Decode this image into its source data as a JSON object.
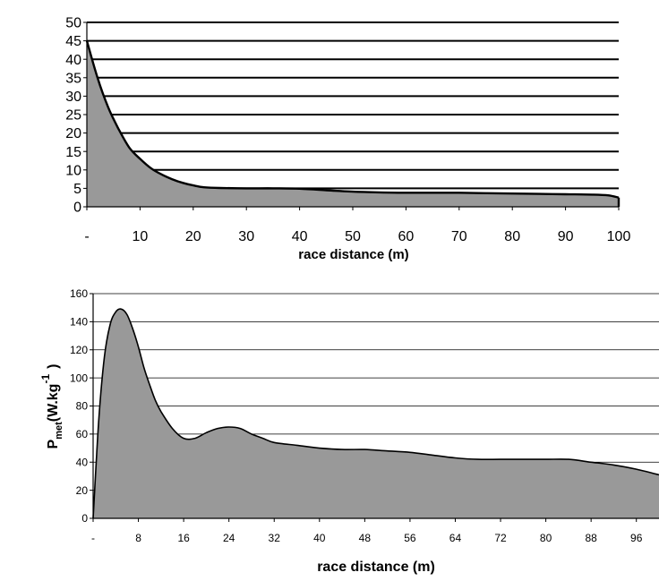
{
  "colors": {
    "area_fill": "#999999",
    "stroke": "#000000",
    "grid": "#000000",
    "background": "#ffffff"
  },
  "chart_data": [
    {
      "type": "area",
      "title": "",
      "xlabel": "race distance (m)",
      "ylabel": "",
      "xlim": [
        0,
        100
      ],
      "ylim": [
        0,
        50
      ],
      "grid": true,
      "legend": "none",
      "x_tick_labels": [
        {
          "value": 0,
          "label": "-"
        },
        {
          "value": 10,
          "label": "10"
        },
        {
          "value": 20,
          "label": "20"
        },
        {
          "value": 30,
          "label": "30"
        },
        {
          "value": 40,
          "label": "40"
        },
        {
          "value": 50,
          "label": "50"
        },
        {
          "value": 60,
          "label": "60"
        },
        {
          "value": 70,
          "label": "70"
        },
        {
          "value": 80,
          "label": "80"
        },
        {
          "value": 90,
          "label": "90"
        },
        {
          "value": 100,
          "label": "100"
        }
      ],
      "y_tick_labels": [
        {
          "value": 0,
          "label": "0"
        },
        {
          "value": 5,
          "label": "5"
        },
        {
          "value": 10,
          "label": "10"
        },
        {
          "value": 15,
          "label": "15"
        },
        {
          "value": 20,
          "label": "20"
        },
        {
          "value": 25,
          "label": "25"
        },
        {
          "value": 30,
          "label": "30"
        },
        {
          "value": 35,
          "label": "35"
        },
        {
          "value": 40,
          "label": "40"
        },
        {
          "value": 45,
          "label": "45"
        },
        {
          "value": 50,
          "label": "50"
        }
      ],
      "series": [
        {
          "x": [
            0,
            2,
            4,
            6,
            8,
            10,
            12,
            14,
            16,
            18,
            20,
            22,
            25,
            30,
            35,
            40,
            45,
            50,
            55,
            60,
            65,
            70,
            75,
            80,
            85,
            90,
            95,
            98,
            100
          ],
          "y": [
            45,
            35,
            27,
            21,
            16,
            13,
            10.5,
            8.8,
            7.5,
            6.5,
            5.8,
            5.3,
            5.1,
            5.0,
            5.0,
            4.9,
            4.5,
            4.1,
            3.9,
            3.8,
            3.8,
            3.8,
            3.7,
            3.6,
            3.5,
            3.4,
            3.3,
            3.1,
            2.5
          ]
        }
      ]
    },
    {
      "type": "area",
      "title": "",
      "xlabel": "race distance (m)",
      "ylabel": {
        "main": "P",
        "sub": "met",
        "units": "(W.kg",
        "sup": "-1",
        "close": ")"
      },
      "xlim": [
        0,
        100
      ],
      "ylim": [
        0,
        160
      ],
      "grid": true,
      "legend": "none",
      "x_tick_labels": [
        {
          "value": 0,
          "label": "-"
        },
        {
          "value": 8,
          "label": "8"
        },
        {
          "value": 16,
          "label": "16"
        },
        {
          "value": 24,
          "label": "24"
        },
        {
          "value": 32,
          "label": "32"
        },
        {
          "value": 40,
          "label": "40"
        },
        {
          "value": 48,
          "label": "48"
        },
        {
          "value": 56,
          "label": "56"
        },
        {
          "value": 64,
          "label": "64"
        },
        {
          "value": 72,
          "label": "72"
        },
        {
          "value": 80,
          "label": "80"
        },
        {
          "value": 88,
          "label": "88"
        },
        {
          "value": 96,
          "label": "96"
        }
      ],
      "y_tick_labels": [
        {
          "value": 0,
          "label": "0"
        },
        {
          "value": 20,
          "label": "20"
        },
        {
          "value": 40,
          "label": "40"
        },
        {
          "value": 60,
          "label": "60"
        },
        {
          "value": 80,
          "label": "80"
        },
        {
          "value": 100,
          "label": "100"
        },
        {
          "value": 120,
          "label": "120"
        },
        {
          "value": 140,
          "label": "140"
        },
        {
          "value": 160,
          "label": "160"
        }
      ],
      "series": [
        {
          "x": [
            0,
            1,
            2,
            3,
            4,
            5,
            6,
            7,
            8,
            9,
            10,
            11,
            12,
            14,
            16,
            18,
            20,
            22,
            24,
            26,
            28,
            30,
            32,
            36,
            40,
            44,
            48,
            52,
            56,
            60,
            64,
            68,
            72,
            76,
            80,
            84,
            88,
            92,
            96,
            100
          ],
          "y": [
            0,
            70,
            115,
            138,
            147,
            149,
            145,
            135,
            122,
            107,
            95,
            84,
            76,
            64,
            57,
            57,
            61,
            64,
            65,
            64,
            60,
            57,
            54,
            52,
            50,
            49,
            49,
            48,
            47,
            45,
            43,
            42,
            42,
            42,
            42,
            42,
            40,
            38,
            35,
            31
          ]
        }
      ]
    }
  ]
}
